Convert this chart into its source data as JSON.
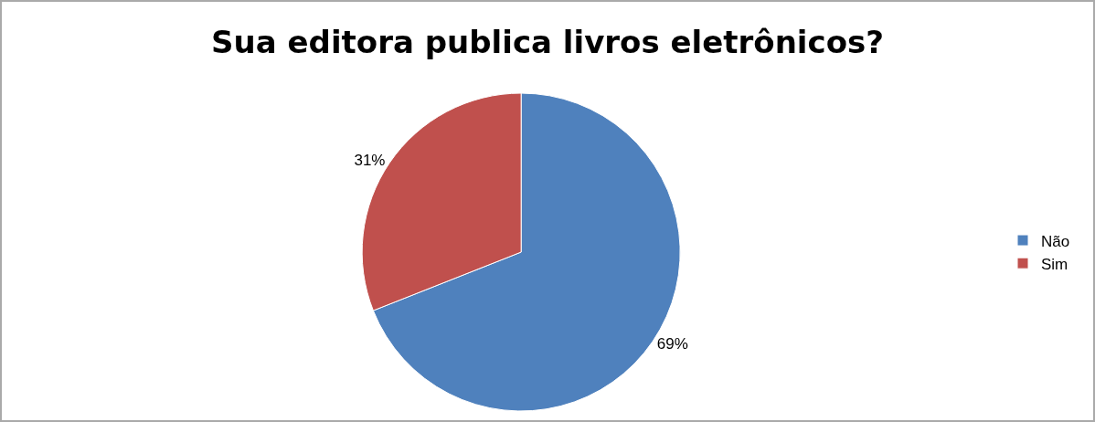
{
  "chart_data": {
    "type": "pie",
    "title": "Sua editora publica livros eletrônicos?",
    "categories": [
      "Não",
      "Sim"
    ],
    "values": [
      69,
      31
    ],
    "value_labels": [
      "69%",
      "31%"
    ],
    "colors": [
      "#4f81bd",
      "#c0504d"
    ],
    "legend": "right"
  }
}
